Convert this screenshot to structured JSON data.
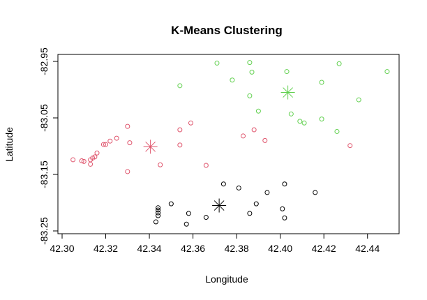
{
  "chart_data": {
    "type": "scatter",
    "title": "K-Means Clustering",
    "xlabel": "Longitude",
    "ylabel": "Latitude",
    "xlim": [
      42.3,
      42.45
    ],
    "ylim": [
      -83.25,
      -82.95
    ],
    "x_ticks": [
      42.3,
      42.32,
      42.34,
      42.36,
      42.38,
      42.4,
      42.42,
      42.44
    ],
    "x_tick_labels": [
      "42.30",
      "42.32",
      "42.34",
      "42.36",
      "42.38",
      "42.40",
      "42.42",
      "42.44"
    ],
    "y_ticks": [
      -83.25,
      -83.15,
      -83.05,
      -82.95
    ],
    "y_tick_labels": [
      "-83.25",
      "-83.15",
      "-83.05",
      "-82.95"
    ],
    "grid": false,
    "series": [
      {
        "color": "#61D04F",
        "points": [
          [
            42.371,
            -82.953
          ],
          [
            42.386,
            -82.952
          ],
          [
            42.427,
            -82.954
          ],
          [
            42.387,
            -82.969
          ],
          [
            42.403,
            -82.968
          ],
          [
            42.449,
            -82.968
          ],
          [
            42.378,
            -82.983
          ],
          [
            42.354,
            -82.993
          ],
          [
            42.419,
            -82.987
          ],
          [
            42.386,
            -83.011
          ],
          [
            42.436,
            -83.018
          ],
          [
            42.39,
            -83.038
          ],
          [
            42.405,
            -83.043
          ],
          [
            42.409,
            -83.056
          ],
          [
            42.411,
            -83.059
          ],
          [
            42.419,
            -83.052
          ],
          [
            42.426,
            -83.074
          ]
        ],
        "center": [
          42.4035,
          -83.005
        ]
      },
      {
        "color": "#DF536B",
        "points": [
          [
            42.305,
            -83.124
          ],
          [
            42.309,
            -83.126
          ],
          [
            42.31,
            -83.127
          ],
          [
            42.313,
            -83.124
          ],
          [
            42.313,
            -83.132
          ],
          [
            42.314,
            -83.121
          ],
          [
            42.315,
            -83.119
          ],
          [
            42.316,
            -83.112
          ],
          [
            42.319,
            -83.097
          ],
          [
            42.32,
            -83.097
          ],
          [
            42.322,
            -83.091
          ],
          [
            42.325,
            -83.086
          ],
          [
            42.33,
            -83.065
          ],
          [
            42.33,
            -83.145
          ],
          [
            42.331,
            -83.094
          ],
          [
            42.345,
            -83.133
          ],
          [
            42.354,
            -83.071
          ],
          [
            42.354,
            -83.098
          ],
          [
            42.359,
            -83.059
          ],
          [
            42.366,
            -83.134
          ],
          [
            42.383,
            -83.082
          ],
          [
            42.388,
            -83.071
          ],
          [
            42.393,
            -83.09
          ],
          [
            42.432,
            -83.099
          ]
        ],
        "center": [
          42.3405,
          -83.101
        ]
      },
      {
        "color": "#000000",
        "points": [
          [
            42.344,
            -83.209
          ],
          [
            42.344,
            -83.213
          ],
          [
            42.344,
            -83.218
          ],
          [
            42.344,
            -83.223
          ],
          [
            42.343,
            -83.234
          ],
          [
            42.35,
            -83.202
          ],
          [
            42.357,
            -83.238
          ],
          [
            42.358,
            -83.219
          ],
          [
            42.366,
            -83.226
          ],
          [
            42.374,
            -83.167
          ],
          [
            42.381,
            -83.174
          ],
          [
            42.386,
            -83.219
          ],
          [
            42.389,
            -83.202
          ],
          [
            42.394,
            -83.182
          ],
          [
            42.401,
            -83.211
          ],
          [
            42.402,
            -83.227
          ],
          [
            42.402,
            -83.167
          ],
          [
            42.416,
            -83.182
          ]
        ],
        "center": [
          42.372,
          -83.205
        ]
      }
    ]
  }
}
